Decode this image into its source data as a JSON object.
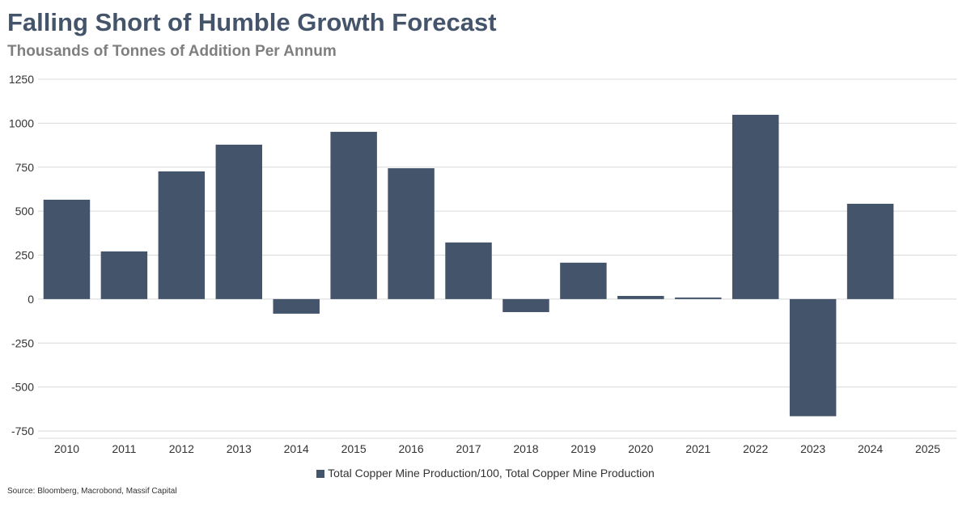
{
  "chart_data": {
    "type": "bar",
    "title": "Falling Short of Humble Growth Forecast",
    "subtitle": "Thousands of Tonnes of Addition Per Annum",
    "categories": [
      "2010",
      "2011",
      "2012",
      "2013",
      "2014",
      "2015",
      "2016",
      "2017",
      "2018",
      "2019",
      "2020",
      "2021",
      "2022",
      "2023",
      "2024",
      "2025"
    ],
    "series": [
      {
        "name": "Total Copper Mine Production/100, Total Copper Mine Production",
        "values": [
          565,
          271,
          726,
          878,
          -83,
          951,
          744,
          322,
          -74,
          207,
          18,
          9,
          1048,
          -666,
          542,
          null
        ]
      }
    ],
    "yticks": [
      1250,
      1000,
      750,
      500,
      250,
      0,
      -250,
      -500,
      -750
    ],
    "ylim": [
      -750,
      1250
    ],
    "grid": true,
    "legend": "bottom",
    "color": "#44546a",
    "source": "Source: Bloomberg, Macrobond, Massif Capital"
  }
}
